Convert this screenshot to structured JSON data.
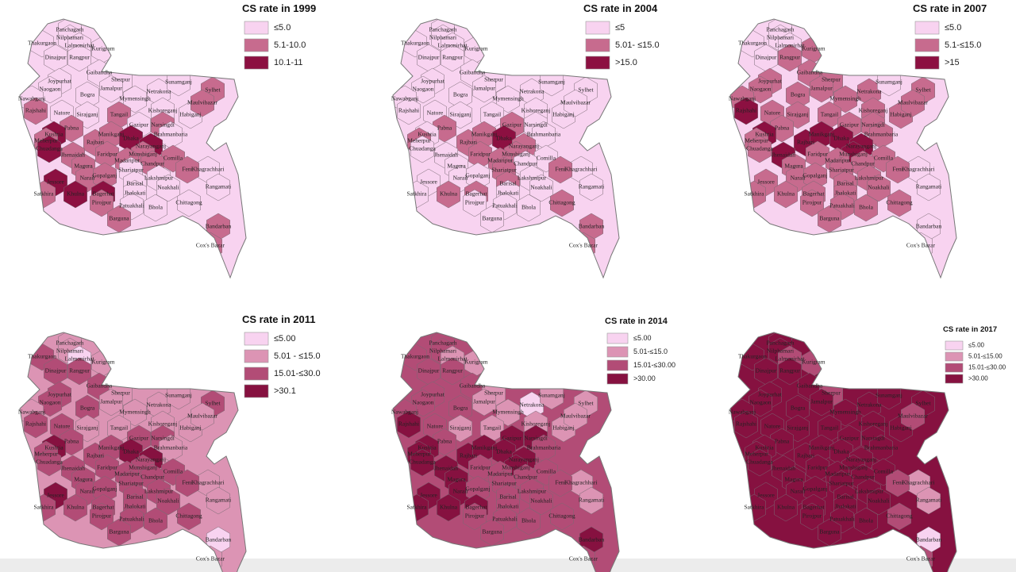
{
  "districts": [
    "Panchagarh",
    "Thakurgaon",
    "Nilphamari",
    "Lalmonirhat",
    "Kurigram",
    "Dinajpur",
    "Rangpur",
    "Gaibandha",
    "Joypurhat",
    "Naogaon",
    "Bogra",
    "Sherpur",
    "Jamalpur",
    "Mymensingh",
    "Netrakona",
    "Sunamganj",
    "Sylhet",
    "Nawabganj",
    "Rajshahi",
    "Natore",
    "Sirajganj",
    "Tangail",
    "Kishoreganj",
    "Habiganj",
    "Maulvibazar",
    "Pabna",
    "Gazipur",
    "Narsingdi",
    "Brahmanbaria",
    "Kushtia",
    "Meherpur",
    "Chuadanga",
    "Rajbari",
    "Manikganj",
    "Dhaka",
    "Narayanganj",
    "Jhenaidah",
    "Faridpur",
    "Munshiganj",
    "Comilla",
    "Magura",
    "Madaripur",
    "Chandpur",
    "Narail",
    "Gopalganj",
    "Shariatpur",
    "Jessore",
    "Khagrachhari",
    "Lakshmipur",
    "Feni",
    "Noakhali",
    "Rangamati",
    "Barisal",
    "Jhalokati",
    "Satkhira",
    "Khulna",
    "Bagerhat",
    "Pirojpur",
    "Chittagong",
    "Patuakhali",
    "Bhola",
    "Barguna",
    "Bandarban",
    "Cox's Bazar"
  ],
  "maps": [
    {
      "title": "CS rate in 1999",
      "legend": [
        {
          "label": "≤5.0",
          "color": "#f8d3f0"
        },
        {
          "label": "5.1-10.0",
          "color": "#c76b8e"
        },
        {
          "label": "10.1-11",
          "color": "#8c1041"
        }
      ],
      "fills": [
        "#f8d3f0",
        "#f8d3f0",
        "#f8d3f0",
        "#f8d3f0",
        "#f8d3f0",
        "#f8d3f0",
        "#f8d3f0",
        "#f8d3f0",
        "#f8d3f0",
        "#f8d3f0",
        "#f8d3f0",
        "#f8d3f0",
        "#f8d3f0",
        "#f8d3f0",
        "#f8d3f0",
        "#f8d3f0",
        "#c76b8e",
        "#f8d3f0",
        "#c76b8e",
        "#f8d3f0",
        "#f8d3f0",
        "#c76b8e",
        "#f8d3f0",
        "#f8d3f0",
        "#c76b8e",
        "#c76b8e",
        "#f8d3f0",
        "#c76b8e",
        "#f8d3f0",
        "#8c1041",
        "#c76b8e",
        "#8c1041",
        "#c76b8e",
        "#c76b8e",
        "#8c1041",
        "#8c1041",
        "#c76b8e",
        "#c76b8e",
        "#c76b8e",
        "#c76b8e",
        "#c76b8e",
        "#c76b8e",
        "#c76b8e",
        "#c76b8e",
        "#c76b8e",
        "#f8d3f0",
        "#8c1041",
        "#f8d3f0",
        "#f8d3f0",
        "#c76b8e",
        "#f8d3f0",
        "#f8d3f0",
        "#f8d3f0",
        "#f8d3f0",
        "#c76b8e",
        "#8c1041",
        "#8c1041",
        "#c76b8e",
        "#f8d3f0",
        "#f8d3f0",
        "#f8d3f0",
        "#c76b8e",
        "#c76b8e",
        "#c76b8e"
      ]
    },
    {
      "title": "CS rate in 2004",
      "legend": [
        {
          "label": "≤5",
          "color": "#f8d3f0"
        },
        {
          "label": "5.01- ≤15.0",
          "color": "#c76b8e"
        },
        {
          "label": ">15.0",
          "color": "#8c1041"
        }
      ],
      "fills": [
        "#f8d3f0",
        "#f8d3f0",
        "#f8d3f0",
        "#f8d3f0",
        "#f8d3f0",
        "#f8d3f0",
        "#f8d3f0",
        "#f8d3f0",
        "#f8d3f0",
        "#f8d3f0",
        "#f8d3f0",
        "#f8d3f0",
        "#f8d3f0",
        "#f8d3f0",
        "#f8d3f0",
        "#f8d3f0",
        "#f8d3f0",
        "#f8d3f0",
        "#f8d3f0",
        "#f8d3f0",
        "#f8d3f0",
        "#f8d3f0",
        "#f8d3f0",
        "#f8d3f0",
        "#f8d3f0",
        "#c76b8e",
        "#c76b8e",
        "#f8d3f0",
        "#f8d3f0",
        "#f8d3f0",
        "#c76b8e",
        "#f8d3f0",
        "#c76b8e",
        "#c76b8e",
        "#8c1041",
        "#c76b8e",
        "#f8d3f0",
        "#c76b8e",
        "#c76b8e",
        "#f8d3f0",
        "#f8d3f0",
        "#c76b8e",
        "#f8d3f0",
        "#f8d3f0",
        "#f8d3f0",
        "#c76b8e",
        "#f8d3f0",
        "#f8d3f0",
        "#f8d3f0",
        "#c76b8e",
        "#f8d3f0",
        "#f8d3f0",
        "#c76b8e",
        "#f8d3f0",
        "#f8d3f0",
        "#c76b8e",
        "#c76b8e",
        "#f8d3f0",
        "#c76b8e",
        "#f8d3f0",
        "#f8d3f0",
        "#f8d3f0",
        "#c76b8e",
        "#c76b8e"
      ]
    },
    {
      "title": "CS rate in 2007",
      "legend": [
        {
          "label": "≤5.0",
          "color": "#f8d3f0"
        },
        {
          "label": "5.1-≤15.0",
          "color": "#c76b8e"
        },
        {
          "label": ">15",
          "color": "#8c1041"
        }
      ],
      "fills": [
        "#f8d3f0",
        "#f8d3f0",
        "#f8d3f0",
        "#f8d3f0",
        "#c76b8e",
        "#f8d3f0",
        "#c76b8e",
        "#c76b8e",
        "#c76b8e",
        "#c76b8e",
        "#c76b8e",
        "#c76b8e",
        "#c76b8e",
        "#c76b8e",
        "#c76b8e",
        "#f8d3f0",
        "#c76b8e",
        "#c76b8e",
        "#8c1041",
        "#c76b8e",
        "#c76b8e",
        "#c76b8e",
        "#c76b8e",
        "#c76b8e",
        "#c76b8e",
        "#c76b8e",
        "#c76b8e",
        "#c76b8e",
        "#c76b8e",
        "#8c1041",
        "#c76b8e",
        "#c76b8e",
        "#8c1041",
        "#8c1041",
        "#8c1041",
        "#8c1041",
        "#8c1041",
        "#c76b8e",
        "#8c1041",
        "#c76b8e",
        "#c76b8e",
        "#c76b8e",
        "#c76b8e",
        "#c76b8e",
        "#c76b8e",
        "#c76b8e",
        "#c76b8e",
        "#f8d3f0",
        "#c76b8e",
        "#c76b8e",
        "#c76b8e",
        "#f8d3f0",
        "#c76b8e",
        "#c76b8e",
        "#c76b8e",
        "#c76b8e",
        "#c76b8e",
        "#c76b8e",
        "#c76b8e",
        "#c76b8e",
        "#c76b8e",
        "#c76b8e",
        "#f8d3f0",
        "#f8d3f0"
      ]
    },
    {
      "title": "CS rate in 2011",
      "legend": [
        {
          "label": "≤5.00",
          "color": "#f8d3f0"
        },
        {
          "label": "5.01 - ≤15.0",
          "color": "#dc94b4"
        },
        {
          "label": "15.01-≤30.0",
          "color": "#b24c76"
        },
        {
          "label": ">30.1",
          "color": "#861140"
        }
      ],
      "fills": [
        "#dc94b4",
        "#b24c76",
        "#dc94b4",
        "#f8d3f0",
        "#dc94b4",
        "#b24c76",
        "#b24c76",
        "#b24c76",
        "#b24c76",
        "#b24c76",
        "#b24c76",
        "#dc94b4",
        "#dc94b4",
        "#dc94b4",
        "#dc94b4",
        "#dc94b4",
        "#b24c76",
        "#dc94b4",
        "#b24c76",
        "#b24c76",
        "#dc94b4",
        "#dc94b4",
        "#dc94b4",
        "#dc94b4",
        "#dc94b4",
        "#b24c76",
        "#b24c76",
        "#b24c76",
        "#dc94b4",
        "#861140",
        "#b24c76",
        "#b24c76",
        "#b24c76",
        "#b24c76",
        "#861140",
        "#861140",
        "#b24c76",
        "#b24c76",
        "#b24c76",
        "#b24c76",
        "#b24c76",
        "#b24c76",
        "#b24c76",
        "#b24c76",
        "#b24c76",
        "#b24c76",
        "#861140",
        "#dc94b4",
        "#b24c76",
        "#b24c76",
        "#b24c76",
        "#dc94b4",
        "#b24c76",
        "#b24c76",
        "#b24c76",
        "#b24c76",
        "#b24c76",
        "#b24c76",
        "#b24c76",
        "#b24c76",
        "#b24c76",
        "#b24c76",
        "#f8d3f0",
        "#dc94b4"
      ]
    },
    {
      "title": "CS rate in 2014",
      "legend": [
        {
          "label": "≤5.00",
          "color": "#f8d3f0"
        },
        {
          "label": "5.01-≤15.0",
          "color": "#dc94b4"
        },
        {
          "label": "15.01-≤30.00",
          "color": "#b24c76"
        },
        {
          "label": ">30.00",
          "color": "#861140"
        }
      ],
      "fills": [
        "#b24c76",
        "#b24c76",
        "#b24c76",
        "#dc94b4",
        "#dc94b4",
        "#b24c76",
        "#b24c76",
        "#b24c76",
        "#b24c76",
        "#b24c76",
        "#b24c76",
        "#dc94b4",
        "#dc94b4",
        "#dc94b4",
        "#f8d3f0",
        "#dc94b4",
        "#dc94b4",
        "#b24c76",
        "#861140",
        "#b24c76",
        "#dc94b4",
        "#dc94b4",
        "#dc94b4",
        "#dc94b4",
        "#dc94b4",
        "#b24c76",
        "#861140",
        "#861140",
        "#b24c76",
        "#861140",
        "#861140",
        "#861140",
        "#861140",
        "#861140",
        "#861140",
        "#861140",
        "#861140",
        "#b24c76",
        "#861140",
        "#b24c76",
        "#861140",
        "#b24c76",
        "#b24c76",
        "#861140",
        "#b24c76",
        "#b24c76",
        "#861140",
        "#dc94b4",
        "#b24c76",
        "#b24c76",
        "#b24c76",
        "#dc94b4",
        "#b24c76",
        "#b24c76",
        "#861140",
        "#861140",
        "#861140",
        "#b24c76",
        "#b24c76",
        "#b24c76",
        "#b24c76",
        "#b24c76",
        "#861140",
        "#b24c76"
      ]
    },
    {
      "title": "CS rate in 2017",
      "legend": [
        {
          "label": "≤5.00",
          "color": "#f8d3f0"
        },
        {
          "label": "5.01-≤15.00",
          "color": "#dc94b4"
        },
        {
          "label": "15.01-≤30.00",
          "color": "#b24c76"
        },
        {
          "label": ">30.00",
          "color": "#861140"
        }
      ],
      "fills": [
        "#861140",
        "#861140",
        "#861140",
        "#b24c76",
        "#b24c76",
        "#861140",
        "#861140",
        "#861140",
        "#861140",
        "#861140",
        "#861140",
        "#b24c76",
        "#861140",
        "#861140",
        "#861140",
        "#861140",
        "#861140",
        "#861140",
        "#861140",
        "#861140",
        "#861140",
        "#861140",
        "#861140",
        "#861140",
        "#b24c76",
        "#861140",
        "#861140",
        "#861140",
        "#861140",
        "#861140",
        "#861140",
        "#861140",
        "#861140",
        "#861140",
        "#861140",
        "#861140",
        "#861140",
        "#861140",
        "#861140",
        "#861140",
        "#861140",
        "#861140",
        "#861140",
        "#861140",
        "#861140",
        "#861140",
        "#861140",
        "#dc94b4",
        "#861140",
        "#b24c76",
        "#861140",
        "#dc94b4",
        "#861140",
        "#861140",
        "#861140",
        "#861140",
        "#861140",
        "#861140",
        "#b24c76",
        "#861140",
        "#861140",
        "#861140",
        "#f8d3f0",
        "#b24c76"
      ]
    }
  ]
}
